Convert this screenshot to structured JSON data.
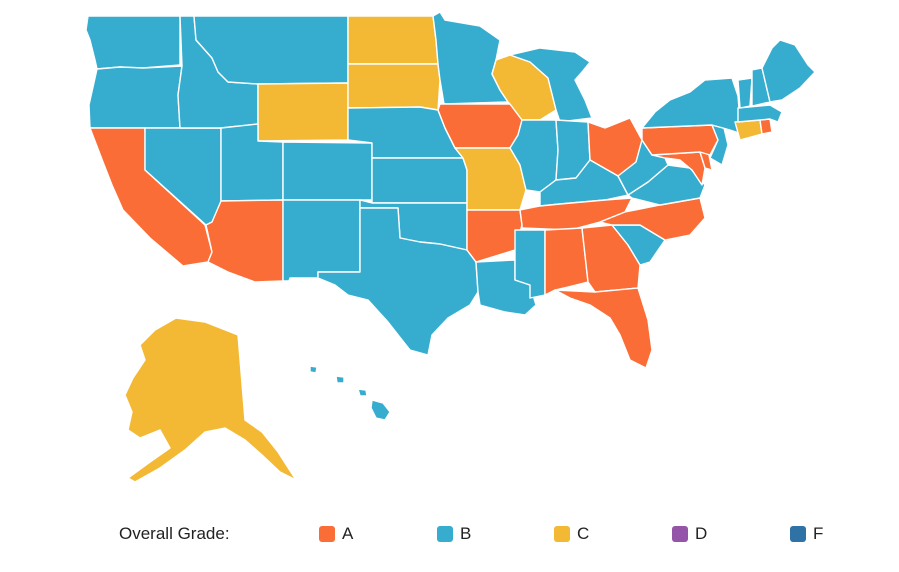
{
  "colors": {
    "A": "#fb6d36",
    "B": "#36adcf",
    "C": "#f3b935",
    "D": "#9454a8",
    "F": "#2f72a5"
  },
  "legend": {
    "title": "Overall Grade:",
    "items": [
      {
        "grade": "A",
        "label": "A"
      },
      {
        "grade": "B",
        "label": "B"
      },
      {
        "grade": "C",
        "label": "C"
      },
      {
        "grade": "D",
        "label": "D"
      },
      {
        "grade": "F",
        "label": "F"
      }
    ]
  },
  "state_grades": {
    "WA": "B",
    "OR": "B",
    "CA": "A",
    "NV": "B",
    "ID": "B",
    "MT": "B",
    "WY": "C",
    "UT": "B",
    "AZ": "A",
    "CO": "B",
    "NM": "B",
    "ND": "C",
    "SD": "C",
    "NE": "B",
    "KS": "B",
    "OK": "B",
    "TX": "B",
    "MN": "B",
    "IA": "A",
    "MO": "C",
    "AR": "A",
    "LA": "B",
    "WI": "C",
    "IL": "B",
    "MI": "B",
    "IN": "B",
    "OH": "A",
    "KY": "B",
    "TN": "A",
    "MS": "B",
    "AL": "A",
    "GA": "A",
    "FL": "A",
    "SC": "B",
    "NC": "A",
    "VA": "B",
    "WV": "B",
    "MD": "A",
    "DE": "A",
    "NJ": "B",
    "PA": "A",
    "NY": "B",
    "CT": "C",
    "RI": "A",
    "MA": "B",
    "VT": "B",
    "NH": "B",
    "ME": "B",
    "AK": "C",
    "HI": "B"
  }
}
